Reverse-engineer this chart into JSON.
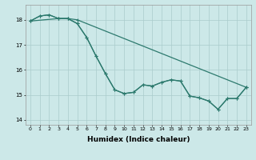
{
  "xlabel": "Humidex (Indice chaleur)",
  "background_color": "#cce8e8",
  "grid_color": "#aacccc",
  "line_color": "#2d7a6e",
  "xlim": [
    -0.5,
    23.5
  ],
  "ylim": [
    13.8,
    18.6
  ],
  "yticks": [
    14,
    15,
    16,
    17,
    18
  ],
  "xticks": [
    0,
    1,
    2,
    3,
    4,
    5,
    6,
    7,
    8,
    9,
    10,
    11,
    12,
    13,
    14,
    15,
    16,
    17,
    18,
    19,
    20,
    21,
    22,
    23
  ],
  "series1_x": [
    0,
    1,
    2,
    3,
    4,
    5,
    23
  ],
  "series1_y": [
    17.95,
    18.15,
    18.2,
    18.05,
    18.05,
    18.0,
    15.3
  ],
  "series2_x": [
    0,
    1,
    2,
    3,
    4,
    5,
    6,
    7,
    8,
    9,
    10,
    11,
    12,
    13,
    14,
    15,
    16,
    17,
    18,
    19,
    20,
    21,
    22,
    23
  ],
  "series2_y": [
    17.95,
    18.15,
    18.2,
    18.05,
    18.05,
    17.85,
    17.3,
    16.55,
    15.85,
    15.2,
    15.05,
    15.1,
    15.4,
    15.35,
    15.5,
    15.6,
    15.55,
    14.95,
    14.88,
    14.75,
    14.42,
    14.85,
    14.85,
    15.3
  ],
  "series3_x": [
    0,
    3,
    4,
    5,
    6,
    7,
    8,
    9,
    10,
    11,
    12,
    13,
    14,
    15,
    16,
    17,
    18,
    19,
    20,
    21,
    22,
    23
  ],
  "series3_y": [
    17.95,
    18.05,
    18.05,
    17.85,
    17.3,
    16.55,
    15.85,
    15.2,
    15.05,
    15.1,
    15.4,
    15.35,
    15.5,
    15.6,
    15.55,
    14.95,
    14.88,
    14.75,
    14.42,
    14.85,
    14.85,
    15.3
  ],
  "marker_size": 2.5,
  "line_width": 0.9,
  "tick_fontsize": 4.5,
  "xlabel_fontsize": 6.5
}
